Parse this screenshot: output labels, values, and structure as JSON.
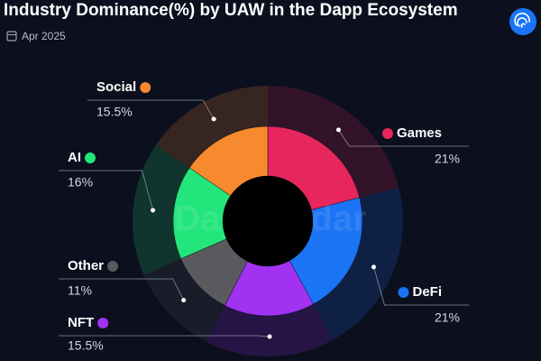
{
  "chart_data": {
    "type": "donut",
    "title": "Industry Dominance(%) by UAW in the Dapp Ecosystem",
    "subtitle": "Apr 2025",
    "watermark": "DappRadar",
    "categories": [
      "Games",
      "DeFi",
      "NFT",
      "Other",
      "AI",
      "Social"
    ],
    "values": [
      21,
      21,
      15.5,
      11,
      16,
      15.5
    ],
    "value_labels": [
      "21%",
      "21%",
      "15.5%",
      "11%",
      "16%",
      "15.5%"
    ],
    "colors": [
      "#e8265e",
      "#1b74f5",
      "#a232f2",
      "#5a5a5e",
      "#22e67b",
      "#f7892f"
    ]
  }
}
